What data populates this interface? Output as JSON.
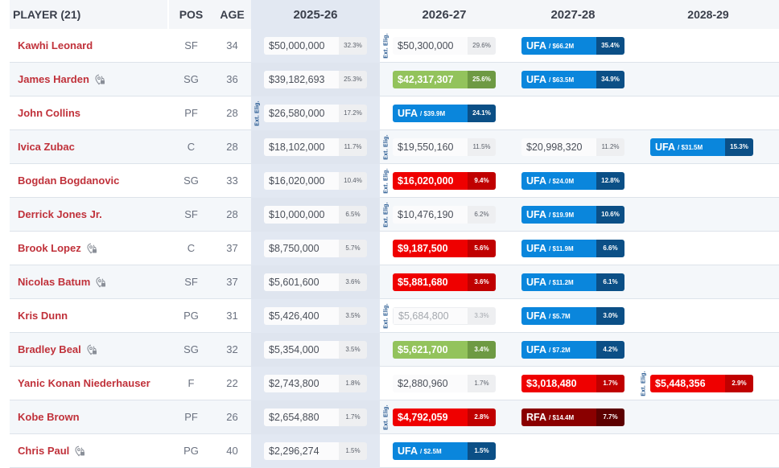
{
  "header": {
    "player": "PLAYER (21)",
    "pos": "POS",
    "age": "AGE",
    "seasons": [
      "2025-26",
      "2026-27",
      "2027-28",
      "2028-29"
    ]
  },
  "labels": {
    "ext_elig": "Ext. Elig."
  },
  "colors": {
    "player_name": "#c0313a",
    "ufa": "#0a86dc",
    "rfa": "#8a0000",
    "player_option": "#ef0000",
    "team_option": "#93c35c",
    "current_season_bg": "#e2e8f2"
  },
  "rows": [
    {
      "name": "Kawhi Leonard",
      "lock": false,
      "pos": "SF",
      "age": "34",
      "s0": {
        "type": "plain",
        "val": "$50,000,000",
        "pct": "32.3%"
      },
      "s1": {
        "type": "plain",
        "val": "$50,300,000",
        "pct": "29.6%",
        "ext": true
      },
      "s2": {
        "type": "ufa",
        "tag": "UFA",
        "sub": "/ $66.2M",
        "pct": "35.4%"
      },
      "s3": null
    },
    {
      "name": "James Harden",
      "lock": true,
      "pos": "SG",
      "age": "36",
      "s0": {
        "type": "plain",
        "val": "$39,182,693",
        "pct": "25.3%"
      },
      "s1": {
        "type": "green",
        "val": "$42,317,307",
        "pct": "25.6%"
      },
      "s2": {
        "type": "ufa",
        "tag": "UFA",
        "sub": "/ $63.5M",
        "pct": "34.9%"
      },
      "s3": null
    },
    {
      "name": "John Collins",
      "lock": false,
      "pos": "PF",
      "age": "28",
      "s0": {
        "type": "plain",
        "val": "$26,580,000",
        "pct": "17.2%",
        "ext": true
      },
      "s1": {
        "type": "ufa",
        "tag": "UFA",
        "sub": "/ $39.9M",
        "pct": "24.1%"
      },
      "s2": null,
      "s3": null
    },
    {
      "name": "Ivica Zubac",
      "lock": false,
      "pos": "C",
      "age": "28",
      "s0": {
        "type": "plain",
        "val": "$18,102,000",
        "pct": "11.7%"
      },
      "s1": {
        "type": "plain",
        "val": "$19,550,160",
        "pct": "11.5%",
        "ext": true
      },
      "s2": {
        "type": "plain",
        "val": "$20,998,320",
        "pct": "11.2%"
      },
      "s3": {
        "type": "ufa",
        "tag": "UFA",
        "sub": "/ $31.5M",
        "pct": "15.3%"
      }
    },
    {
      "name": "Bogdan Bogdanovic",
      "lock": false,
      "pos": "SG",
      "age": "33",
      "s0": {
        "type": "plain",
        "val": "$16,020,000",
        "pct": "10.4%"
      },
      "s1": {
        "type": "red",
        "val": "$16,020,000",
        "pct": "9.4%",
        "ext": true
      },
      "s2": {
        "type": "ufa",
        "tag": "UFA",
        "sub": "/ $24.0M",
        "pct": "12.8%"
      },
      "s3": null
    },
    {
      "name": "Derrick Jones Jr.",
      "lock": false,
      "pos": "SF",
      "age": "28",
      "s0": {
        "type": "plain",
        "val": "$10,000,000",
        "pct": "6.5%"
      },
      "s1": {
        "type": "plain",
        "val": "$10,476,190",
        "pct": "6.2%",
        "ext": true
      },
      "s2": {
        "type": "ufa",
        "tag": "UFA",
        "sub": "/ $19.9M",
        "pct": "10.6%"
      },
      "s3": null
    },
    {
      "name": "Brook Lopez",
      "lock": true,
      "pos": "C",
      "age": "37",
      "s0": {
        "type": "plain",
        "val": "$8,750,000",
        "pct": "5.7%"
      },
      "s1": {
        "type": "red",
        "val": "$9,187,500",
        "pct": "5.6%"
      },
      "s2": {
        "type": "ufa",
        "tag": "UFA",
        "sub": "/ $11.9M",
        "pct": "6.6%"
      },
      "s3": null
    },
    {
      "name": "Nicolas Batum",
      "lock": true,
      "pos": "SF",
      "age": "37",
      "s0": {
        "type": "plain",
        "val": "$5,601,600",
        "pct": "3.6%"
      },
      "s1": {
        "type": "red",
        "val": "$5,881,680",
        "pct": "3.6%"
      },
      "s2": {
        "type": "ufa",
        "tag": "UFA",
        "sub": "/ $11.2M",
        "pct": "6.1%"
      },
      "s3": null
    },
    {
      "name": "Kris Dunn",
      "lock": false,
      "pos": "PG",
      "age": "31",
      "s0": {
        "type": "plain",
        "val": "$5,426,400",
        "pct": "3.5%"
      },
      "s1": {
        "type": "faded",
        "val": "$5,684,800",
        "pct": "3.3%",
        "ext": true
      },
      "s2": {
        "type": "ufa",
        "tag": "UFA",
        "sub": "/ $5.7M",
        "pct": "3.0%"
      },
      "s3": null
    },
    {
      "name": "Bradley Beal",
      "lock": true,
      "pos": "SG",
      "age": "32",
      "s0": {
        "type": "plain",
        "val": "$5,354,000",
        "pct": "3.5%"
      },
      "s1": {
        "type": "green",
        "val": "$5,621,700",
        "pct": "3.4%"
      },
      "s2": {
        "type": "ufa",
        "tag": "UFA",
        "sub": "/ $7.2M",
        "pct": "4.2%"
      },
      "s3": null
    },
    {
      "name": "Yanic Konan Niederhauser",
      "lock": false,
      "pos": "F",
      "age": "22",
      "s0": {
        "type": "plain",
        "val": "$2,743,800",
        "pct": "1.8%"
      },
      "s1": {
        "type": "plain",
        "val": "$2,880,960",
        "pct": "1.7%"
      },
      "s2": {
        "type": "red",
        "val": "$3,018,480",
        "pct": "1.7%"
      },
      "s3": {
        "type": "red",
        "val": "$5,448,356",
        "pct": "2.9%",
        "ext": true
      }
    },
    {
      "name": "Kobe Brown",
      "lock": false,
      "pos": "PF",
      "age": "26",
      "s0": {
        "type": "plain",
        "val": "$2,654,880",
        "pct": "1.7%"
      },
      "s1": {
        "type": "red",
        "val": "$4,792,059",
        "pct": "2.8%",
        "ext": true
      },
      "s2": {
        "type": "rfa",
        "tag": "RFA",
        "sub": "/ $14.4M",
        "pct": "7.7%"
      },
      "s3": null
    },
    {
      "name": "Chris Paul",
      "lock": true,
      "pos": "PG",
      "age": "40",
      "s0": {
        "type": "plain",
        "val": "$2,296,274",
        "pct": "1.5%"
      },
      "s1": {
        "type": "ufa",
        "tag": "UFA",
        "sub": "/ $2.5M",
        "pct": "1.5%"
      },
      "s2": null,
      "s3": null
    }
  ]
}
